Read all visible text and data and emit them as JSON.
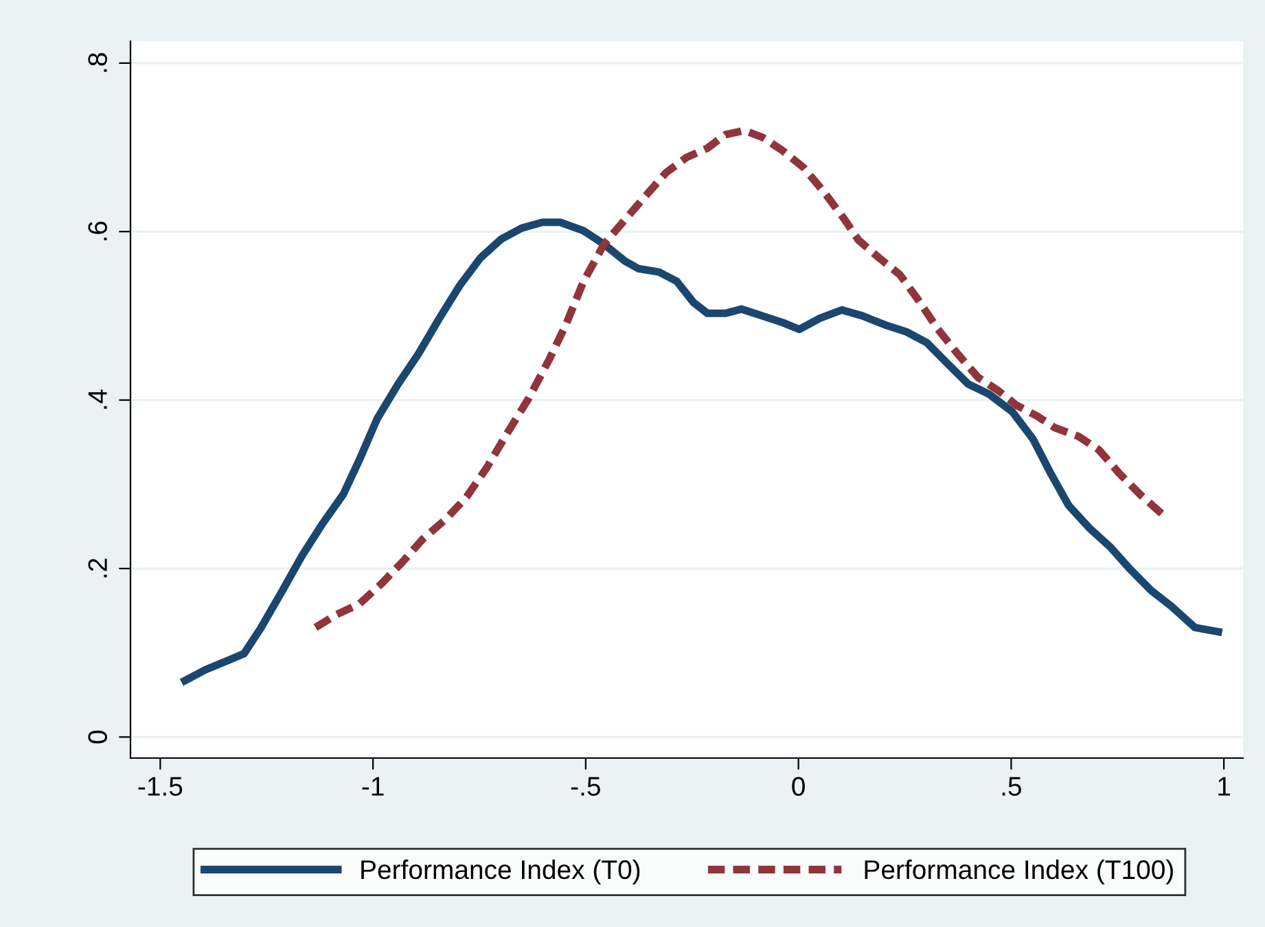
{
  "chart_data": {
    "type": "line",
    "xlim": [
      -1.57,
      1.045
    ],
    "ylim": [
      -0.025,
      0.826
    ],
    "xticks": [
      {
        "value": -1.5,
        "label": "-1.5"
      },
      {
        "value": -1,
        "label": "-1"
      },
      {
        "value": -0.5,
        "label": "-.5"
      },
      {
        "value": 0,
        "label": "0"
      },
      {
        "value": 0.5,
        "label": ".5"
      },
      {
        "value": 1,
        "label": "1"
      }
    ],
    "yticks": [
      {
        "value": 0,
        "label": "0"
      },
      {
        "value": 0.2,
        "label": ".2"
      },
      {
        "value": 0.4,
        "label": ".4"
      },
      {
        "value": 0.6,
        "label": ".6"
      },
      {
        "value": 0.8,
        "label": ".8"
      }
    ],
    "grid": "y",
    "legend": "bottom",
    "series": [
      {
        "name": "Performance Index (T0)",
        "color": "#1a476f",
        "line_style": "solid",
        "x": [
          -1.442,
          -1.393,
          -1.345,
          -1.303,
          -1.264,
          -1.216,
          -1.167,
          -1.119,
          -1.07,
          -1.032,
          -0.99,
          -0.941,
          -0.893,
          -0.844,
          -0.796,
          -0.747,
          -0.699,
          -0.651,
          -0.602,
          -0.56,
          -0.505,
          -0.457,
          -0.408,
          -0.376,
          -0.328,
          -0.286,
          -0.247,
          -0.214,
          -0.172,
          -0.134,
          -0.085,
          -0.037,
          0.002,
          0.05,
          0.102,
          0.15,
          0.205,
          0.254,
          0.302,
          0.351,
          0.399,
          0.448,
          0.503,
          0.551,
          0.593,
          0.635,
          0.684,
          0.732,
          0.78,
          0.829,
          0.877,
          0.932,
          0.987
        ],
        "values": [
          0.067,
          0.08,
          0.09,
          0.099,
          0.129,
          0.171,
          0.215,
          0.253,
          0.288,
          0.329,
          0.378,
          0.419,
          0.455,
          0.497,
          0.536,
          0.569,
          0.591,
          0.604,
          0.611,
          0.611,
          0.601,
          0.585,
          0.565,
          0.556,
          0.552,
          0.541,
          0.516,
          0.503,
          0.503,
          0.508,
          0.5,
          0.492,
          0.484,
          0.497,
          0.507,
          0.5,
          0.489,
          0.481,
          0.468,
          0.443,
          0.419,
          0.407,
          0.386,
          0.354,
          0.313,
          0.275,
          0.248,
          0.226,
          0.199,
          0.174,
          0.155,
          0.13,
          0.125
        ]
      },
      {
        "name": "Performance Index (T100)",
        "color": "#90353b",
        "line_style": "dashed",
        "x": [
          -1.135,
          -1.087,
          -1.032,
          -0.98,
          -0.932,
          -0.883,
          -0.828,
          -0.78,
          -0.731,
          -0.683,
          -0.634,
          -0.586,
          -0.547,
          -0.505,
          -0.457,
          -0.408,
          -0.36,
          -0.311,
          -0.263,
          -0.214,
          -0.172,
          -0.127,
          -0.085,
          -0.037,
          0.012,
          0.06,
          0.109,
          0.141,
          0.189,
          0.238,
          0.28,
          0.328,
          0.374,
          0.422,
          0.47,
          0.512,
          0.561,
          0.603,
          0.658,
          0.706,
          0.754,
          0.803,
          0.861
        ],
        "values": [
          0.13,
          0.145,
          0.158,
          0.182,
          0.207,
          0.235,
          0.259,
          0.285,
          0.321,
          0.362,
          0.402,
          0.448,
          0.489,
          0.541,
          0.585,
          0.614,
          0.642,
          0.67,
          0.688,
          0.699,
          0.715,
          0.72,
          0.712,
          0.696,
          0.676,
          0.647,
          0.614,
          0.59,
          0.569,
          0.549,
          0.52,
          0.484,
          0.455,
          0.427,
          0.411,
          0.394,
          0.381,
          0.367,
          0.357,
          0.341,
          0.313,
          0.288,
          0.262
        ]
      }
    ]
  }
}
